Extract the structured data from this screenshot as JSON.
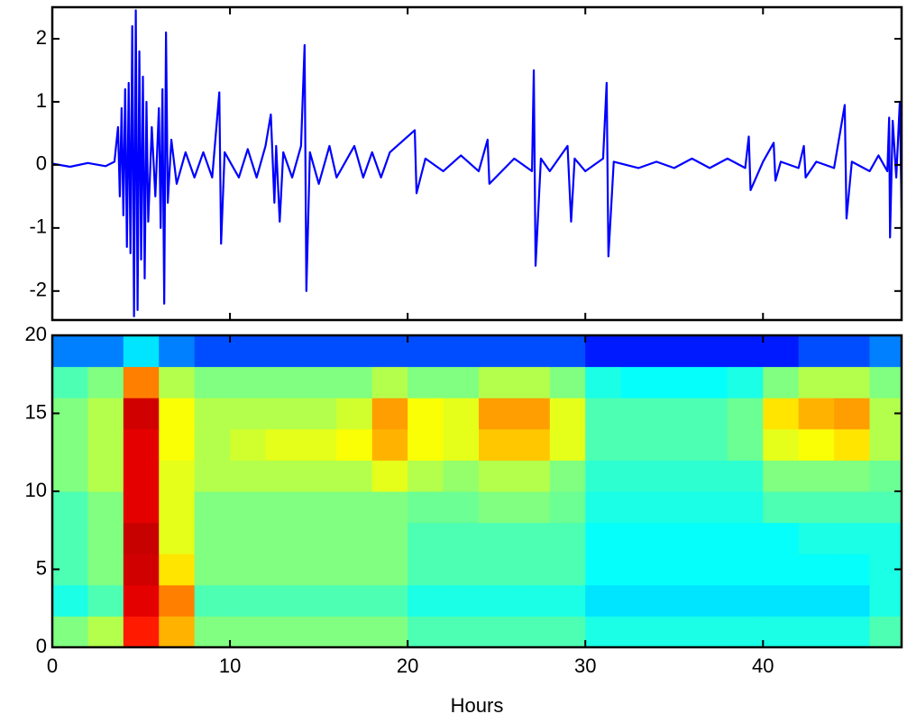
{
  "chart_data": [
    {
      "type": "line",
      "color": "#0000ff",
      "xlim": [
        0,
        47.8
      ],
      "ylim": [
        -2.46,
        2.5
      ],
      "xticks": [
        0,
        10,
        20,
        30,
        40
      ],
      "yticks": [
        -2,
        -1,
        0,
        1,
        2
      ],
      "x": [
        0,
        1,
        2,
        3,
        3.5,
        3.7,
        3.8,
        3.9,
        4.0,
        4.1,
        4.2,
        4.3,
        4.4,
        4.5,
        4.6,
        4.7,
        4.8,
        4.9,
        5.0,
        5.1,
        5.2,
        5.3,
        5.4,
        5.6,
        5.8,
        6.0,
        6.1,
        6.2,
        6.3,
        6.4,
        6.5,
        6.7,
        7,
        7.5,
        8,
        8.5,
        9,
        9.4,
        9.5,
        9.7,
        10.5,
        11,
        11.5,
        12,
        12.3,
        12.5,
        12.6,
        12.8,
        13,
        13.5,
        14.0,
        14.2,
        14.3,
        14.5,
        15,
        15.6,
        16,
        17,
        17.5,
        18,
        18.5,
        19,
        20.4,
        20.5,
        21,
        22,
        23,
        24,
        24.5,
        24.6,
        26,
        27,
        27.1,
        27.2,
        27.5,
        28,
        29,
        29.2,
        29.4,
        30,
        31,
        31.2,
        31.3,
        31.6,
        33,
        34,
        35,
        36,
        37,
        38,
        39,
        39.2,
        39.3,
        40,
        40.6,
        40.7,
        41,
        42,
        42.3,
        42.4,
        43,
        44,
        44.6,
        44.7,
        45,
        46,
        46.5,
        47,
        47.1,
        47.15,
        47.3,
        47.5,
        47.7,
        47.8
      ],
      "values": [
        0.02,
        -0.03,
        0.03,
        -0.02,
        0.05,
        0.6,
        -0.5,
        0.9,
        -0.8,
        1.2,
        -1.3,
        1.3,
        -1.4,
        2.2,
        -2.4,
        2.45,
        -2.3,
        1.8,
        -1.5,
        1.4,
        -1.8,
        1.0,
        -0.9,
        0.6,
        -0.5,
        0.9,
        -1.0,
        1.2,
        -2.2,
        2.1,
        -0.6,
        0.4,
        -0.3,
        0.2,
        -0.2,
        0.2,
        -0.2,
        1.15,
        -1.25,
        0.2,
        -0.2,
        0.25,
        -0.2,
        0.3,
        0.8,
        -0.6,
        0.3,
        -0.9,
        0.2,
        -0.2,
        0.3,
        1.9,
        -2.0,
        0.2,
        -0.3,
        0.3,
        -0.2,
        0.3,
        -0.2,
        0.2,
        -0.2,
        0.2,
        0.55,
        -0.45,
        0.1,
        -0.1,
        0.15,
        -0.1,
        0.4,
        -0.3,
        0.1,
        -0.1,
        1.5,
        -1.6,
        0.1,
        -0.1,
        0.3,
        -0.9,
        0.1,
        -0.1,
        0.1,
        1.3,
        -1.45,
        0.05,
        -0.05,
        0.05,
        -0.05,
        0.1,
        -0.05,
        0.1,
        -0.05,
        0.45,
        -0.4,
        0.05,
        0.35,
        -0.25,
        0.05,
        -0.05,
        0.3,
        -0.2,
        0.05,
        -0.05,
        0.95,
        -0.85,
        0.05,
        -0.1,
        0.15,
        -0.1,
        0.75,
        -1.15,
        0.7,
        -0.2,
        1.0,
        -0.7
      ]
    },
    {
      "type": "heatmap",
      "colormap": "jet",
      "clim": [
        0,
        1
      ],
      "xlabel": "Hours",
      "xlim": [
        0,
        47.8
      ],
      "ylim": [
        0,
        20
      ],
      "xticks": [
        0,
        10,
        20,
        30,
        40
      ],
      "yticks": [
        0,
        5,
        10,
        15,
        20
      ],
      "xbins": [
        0,
        2,
        4,
        6,
        8,
        10,
        12,
        14,
        16,
        18,
        20,
        22,
        24,
        26,
        28,
        30,
        32,
        34,
        36,
        38,
        40,
        42,
        44,
        46,
        48
      ],
      "ybins": [
        0,
        2,
        4,
        6,
        8,
        10,
        12,
        14,
        16,
        18,
        20
      ],
      "z": [
        [
          0.5,
          0.55,
          0.85,
          0.7,
          0.5,
          0.5,
          0.5,
          0.5,
          0.5,
          0.5,
          0.45,
          0.45,
          0.45,
          0.45,
          0.45,
          0.4,
          0.4,
          0.4,
          0.4,
          0.4,
          0.4,
          0.4,
          0.4,
          0.45
        ],
        [
          0.4,
          0.45,
          0.9,
          0.75,
          0.45,
          0.45,
          0.45,
          0.45,
          0.45,
          0.45,
          0.4,
          0.4,
          0.4,
          0.4,
          0.4,
          0.35,
          0.35,
          0.35,
          0.35,
          0.35,
          0.35,
          0.35,
          0.35,
          0.4
        ],
        [
          0.45,
          0.5,
          0.92,
          0.65,
          0.5,
          0.5,
          0.5,
          0.5,
          0.5,
          0.5,
          0.45,
          0.45,
          0.45,
          0.45,
          0.45,
          0.38,
          0.38,
          0.38,
          0.38,
          0.38,
          0.38,
          0.38,
          0.38,
          0.4
        ],
        [
          0.45,
          0.5,
          0.93,
          0.6,
          0.5,
          0.5,
          0.5,
          0.5,
          0.5,
          0.5,
          0.45,
          0.45,
          0.45,
          0.45,
          0.45,
          0.38,
          0.38,
          0.38,
          0.38,
          0.38,
          0.38,
          0.4,
          0.4,
          0.4
        ],
        [
          0.45,
          0.5,
          0.9,
          0.6,
          0.5,
          0.5,
          0.5,
          0.5,
          0.5,
          0.5,
          0.48,
          0.48,
          0.5,
          0.5,
          0.48,
          0.4,
          0.4,
          0.4,
          0.4,
          0.4,
          0.45,
          0.45,
          0.45,
          0.45
        ],
        [
          0.5,
          0.55,
          0.9,
          0.6,
          0.55,
          0.55,
          0.55,
          0.55,
          0.55,
          0.6,
          0.55,
          0.52,
          0.55,
          0.55,
          0.5,
          0.42,
          0.42,
          0.42,
          0.42,
          0.42,
          0.5,
          0.5,
          0.5,
          0.48
        ],
        [
          0.5,
          0.55,
          0.9,
          0.62,
          0.55,
          0.58,
          0.6,
          0.6,
          0.62,
          0.7,
          0.62,
          0.6,
          0.68,
          0.68,
          0.6,
          0.45,
          0.45,
          0.45,
          0.45,
          0.48,
          0.6,
          0.62,
          0.65,
          0.55
        ],
        [
          0.5,
          0.55,
          0.92,
          0.62,
          0.55,
          0.55,
          0.55,
          0.55,
          0.58,
          0.72,
          0.62,
          0.6,
          0.72,
          0.72,
          0.6,
          0.45,
          0.45,
          0.45,
          0.45,
          0.48,
          0.65,
          0.7,
          0.72,
          0.55
        ],
        [
          0.45,
          0.5,
          0.75,
          0.55,
          0.5,
          0.5,
          0.5,
          0.5,
          0.5,
          0.55,
          0.5,
          0.5,
          0.55,
          0.55,
          0.5,
          0.4,
          0.38,
          0.38,
          0.38,
          0.4,
          0.5,
          0.55,
          0.55,
          0.5
        ],
        [
          0.25,
          0.25,
          0.35,
          0.25,
          0.2,
          0.2,
          0.2,
          0.2,
          0.2,
          0.2,
          0.2,
          0.2,
          0.2,
          0.2,
          0.2,
          0.15,
          0.15,
          0.15,
          0.15,
          0.15,
          0.15,
          0.2,
          0.2,
          0.25
        ]
      ]
    }
  ]
}
